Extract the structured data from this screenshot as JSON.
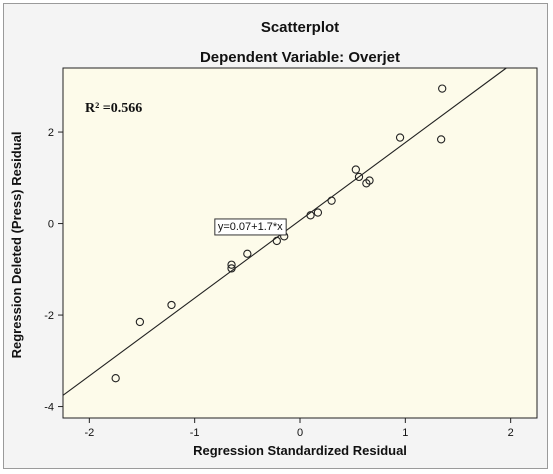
{
  "chart_data": {
    "type": "scatter",
    "title": "Scatterplot",
    "subtitle": "Dependent Variable: Overjet",
    "xlabel": "Regression Standardized Residual",
    "ylabel": "Regression Deleted (Press) Residual",
    "xlim": [
      -2.25,
      2.25
    ],
    "ylim": [
      -4.25,
      3.4
    ],
    "xticks": [
      -2,
      -1,
      0,
      1,
      2
    ],
    "yticks": [
      -4,
      -2,
      0,
      2
    ],
    "grid": false,
    "points": {
      "x": [
        -1.75,
        -1.52,
        -1.22,
        -0.65,
        -0.65,
        -0.5,
        -0.22,
        -0.15,
        0.1,
        0.17,
        0.3,
        0.53,
        0.56,
        0.63,
        0.66,
        0.95,
        1.34,
        1.35
      ],
      "y": [
        -3.38,
        -2.15,
        -1.78,
        -0.98,
        -0.9,
        -0.66,
        -0.38,
        -0.28,
        0.18,
        0.24,
        0.5,
        1.18,
        1.02,
        0.88,
        0.94,
        1.88,
        1.84,
        2.95
      ]
    },
    "fit_line": {
      "intercept": 0.07,
      "slope": 1.7
    },
    "equation_label": "y=0.07+1.7*x",
    "annotation": "R² =0.566",
    "colors": {
      "plot_bg": "#fdfbea",
      "frame_bg": "#f4f4f4",
      "marker": "#222222",
      "line": "#222222"
    }
  }
}
